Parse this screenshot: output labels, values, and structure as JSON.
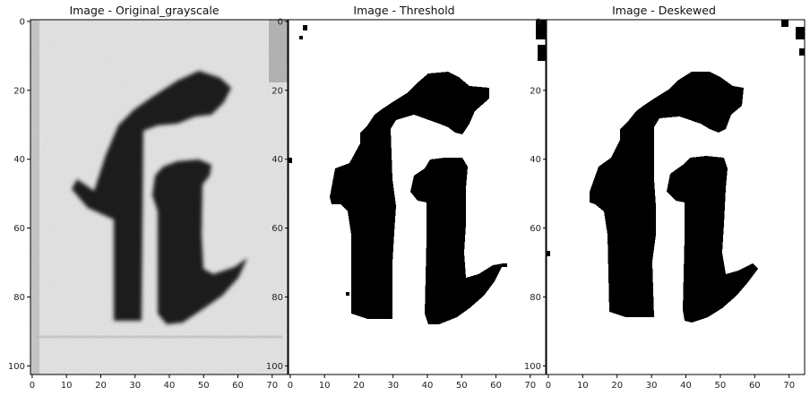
{
  "figure": {
    "panels": [
      {
        "title": "Image - Original_grayscale",
        "kind": "grayscale",
        "xticks": [
          "0",
          "10",
          "20",
          "30",
          "40",
          "50",
          "60",
          "70"
        ],
        "yticks": [
          "0",
          "20",
          "40",
          "60",
          "80",
          "100"
        ]
      },
      {
        "title": "Image - Threshold",
        "kind": "binary",
        "xticks": [
          "0",
          "10",
          "20",
          "30",
          "40",
          "50",
          "60",
          "70"
        ],
        "yticks": [
          "0",
          "20",
          "40",
          "60",
          "80",
          "100"
        ]
      },
      {
        "title": "Image - Deskewed",
        "kind": "binary",
        "xticks": [
          "0",
          "10",
          "20",
          "30",
          "40",
          "50",
          "60",
          "70"
        ],
        "yticks": [
          "0",
          "20",
          "40",
          "60",
          "80",
          "100"
        ]
      }
    ]
  },
  "colors": {
    "ink": "#000000",
    "background": "#ffffff",
    "gray_ink": "#1a1a1a",
    "gray_paper": "#e6e6e6"
  }
}
